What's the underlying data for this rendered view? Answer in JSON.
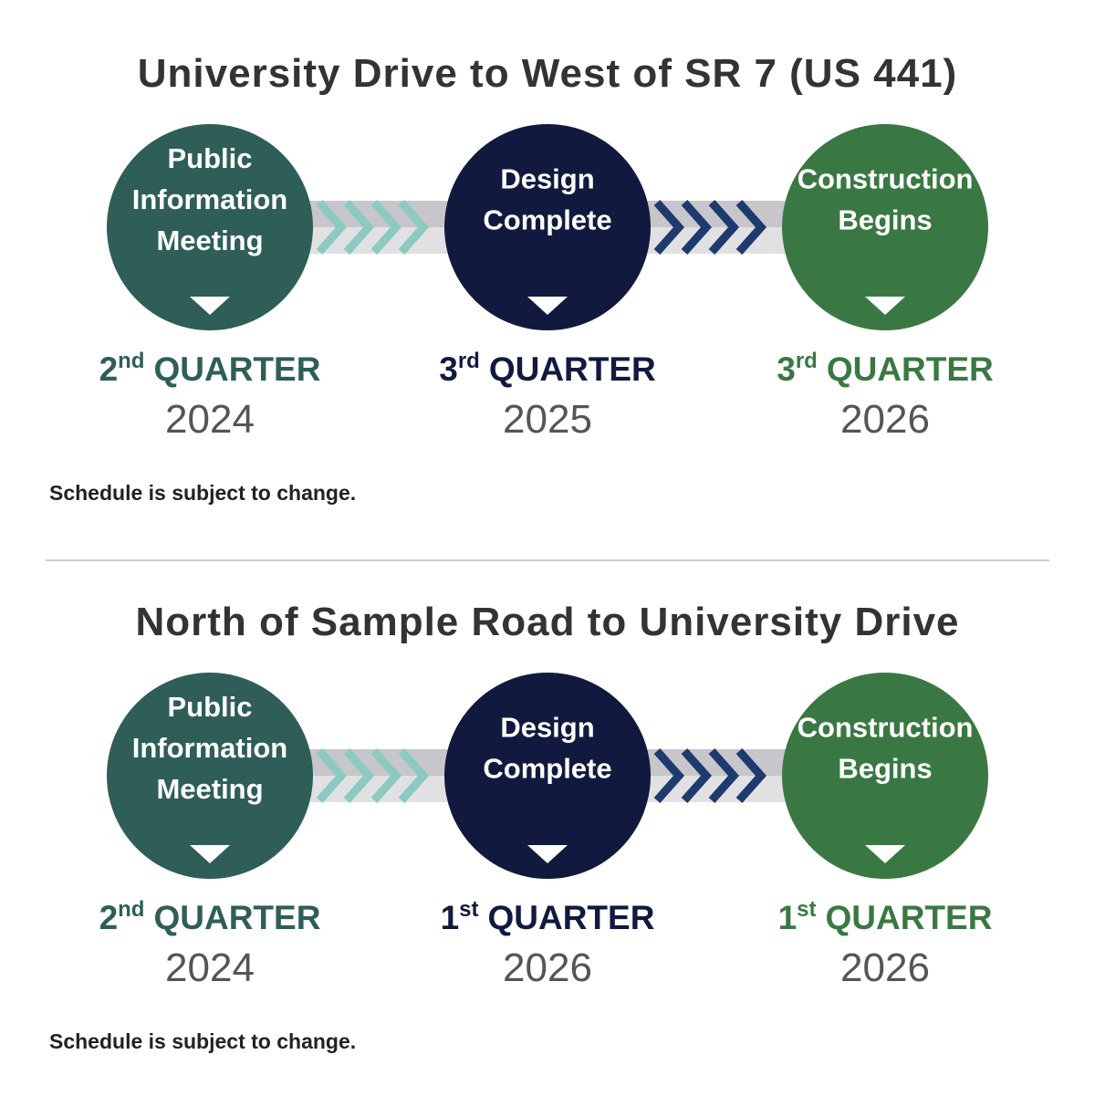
{
  "sections": [
    {
      "title": "University Drive to West of SR 7 (US 441)",
      "stages": [
        {
          "label": [
            "Public",
            "Information",
            "Meeting"
          ],
          "ordinal": "2",
          "suffix": "nd",
          "quarter": "QUARTER",
          "year": "2024"
        },
        {
          "label": [
            "Design",
            "Complete"
          ],
          "ordinal": "3",
          "suffix": "rd",
          "quarter": "QUARTER",
          "year": "2025"
        },
        {
          "label": [
            "Construction",
            "Begins"
          ],
          "ordinal": "3",
          "suffix": "rd",
          "quarter": "QUARTER",
          "year": "2026"
        }
      ],
      "note": "Schedule is subject to change."
    },
    {
      "title": "North of Sample Road to University Drive",
      "stages": [
        {
          "label": [
            "Public",
            "Information",
            "Meeting"
          ],
          "ordinal": "2",
          "suffix": "nd",
          "quarter": "QUARTER",
          "year": "2024"
        },
        {
          "label": [
            "Design",
            "Complete"
          ],
          "ordinal": "1",
          "suffix": "st",
          "quarter": "QUARTER",
          "year": "2026"
        },
        {
          "label": [
            "Construction",
            "Begins"
          ],
          "ordinal": "1",
          "suffix": "st",
          "quarter": "QUARTER",
          "year": "2026"
        }
      ],
      "note": "Schedule is subject to change."
    }
  ]
}
